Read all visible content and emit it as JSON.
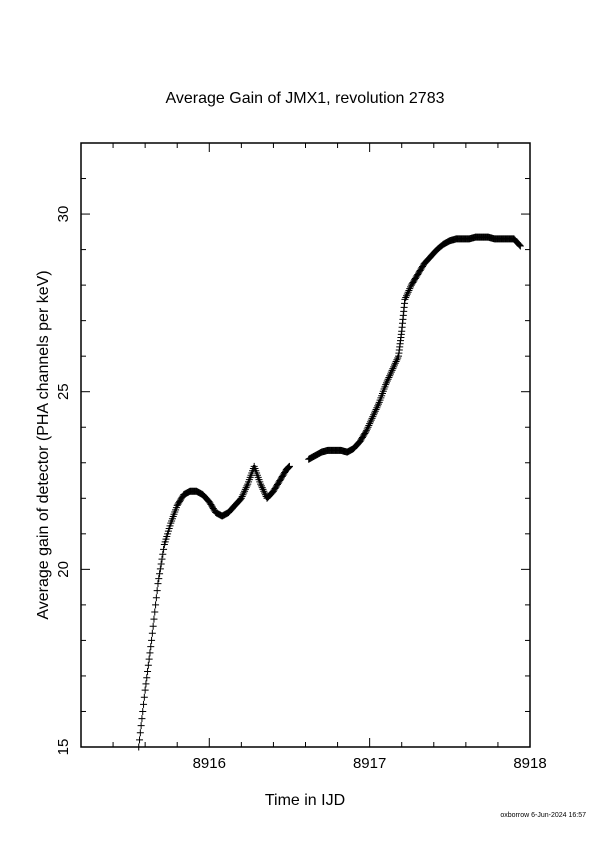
{
  "chart_data": {
    "type": "scatter",
    "title": "Average Gain of JMX1, revolution 2783",
    "xlabel": "Time in IJD",
    "ylabel": "Average gain of detector (PHA channels per keV)",
    "xlim": [
      8915.2,
      8918.0
    ],
    "ylim": [
      15,
      32
    ],
    "xticks": [
      8916,
      8917,
      8918
    ],
    "yticks": [
      15,
      20,
      25,
      30
    ],
    "marker": "+",
    "series": [
      {
        "points": [
          [
            8915.56,
            15.0
          ],
          [
            8915.6,
            16.6
          ],
          [
            8915.64,
            18.0
          ],
          [
            8915.68,
            19.6
          ],
          [
            8915.72,
            20.7
          ],
          [
            8915.76,
            21.3
          ],
          [
            8915.8,
            21.8
          ],
          [
            8915.84,
            22.1
          ],
          [
            8915.88,
            22.2
          ],
          [
            8915.92,
            22.2
          ],
          [
            8915.96,
            22.1
          ],
          [
            8916.0,
            21.9
          ],
          [
            8916.04,
            21.6
          ],
          [
            8916.08,
            21.5
          ],
          [
            8916.12,
            21.6
          ],
          [
            8916.16,
            21.8
          ],
          [
            8916.2,
            22.0
          ],
          [
            8916.24,
            22.4
          ],
          [
            8916.28,
            22.9
          ],
          [
            8916.32,
            22.4
          ],
          [
            8916.36,
            22.0
          ],
          [
            8916.4,
            22.2
          ],
          [
            8916.44,
            22.5
          ],
          [
            8916.48,
            22.8
          ],
          [
            8916.5,
            22.9
          ],
          [
            8916.62,
            23.1
          ],
          [
            8916.66,
            23.2
          ],
          [
            8916.7,
            23.3
          ],
          [
            8916.74,
            23.35
          ],
          [
            8916.78,
            23.35
          ],
          [
            8916.82,
            23.35
          ],
          [
            8916.86,
            23.3
          ],
          [
            8916.9,
            23.4
          ],
          [
            8916.94,
            23.6
          ],
          [
            8916.98,
            23.9
          ],
          [
            8917.02,
            24.3
          ],
          [
            8917.06,
            24.7
          ],
          [
            8917.1,
            25.2
          ],
          [
            8917.14,
            25.6
          ],
          [
            8917.18,
            26.0
          ],
          [
            8917.2,
            26.7
          ],
          [
            8917.22,
            27.6
          ],
          [
            8917.26,
            28.0
          ],
          [
            8917.3,
            28.3
          ],
          [
            8917.34,
            28.6
          ],
          [
            8917.38,
            28.8
          ],
          [
            8917.42,
            29.0
          ],
          [
            8917.46,
            29.15
          ],
          [
            8917.5,
            29.25
          ],
          [
            8917.54,
            29.3
          ],
          [
            8917.58,
            29.3
          ],
          [
            8917.62,
            29.3
          ],
          [
            8917.66,
            29.35
          ],
          [
            8917.7,
            29.35
          ],
          [
            8917.74,
            29.35
          ],
          [
            8917.78,
            29.3
          ],
          [
            8917.82,
            29.3
          ],
          [
            8917.86,
            29.3
          ],
          [
            8917.9,
            29.3
          ],
          [
            8917.94,
            29.1
          ]
        ]
      }
    ]
  },
  "footer": "oxborrow  6-Jun-2024 16:57"
}
